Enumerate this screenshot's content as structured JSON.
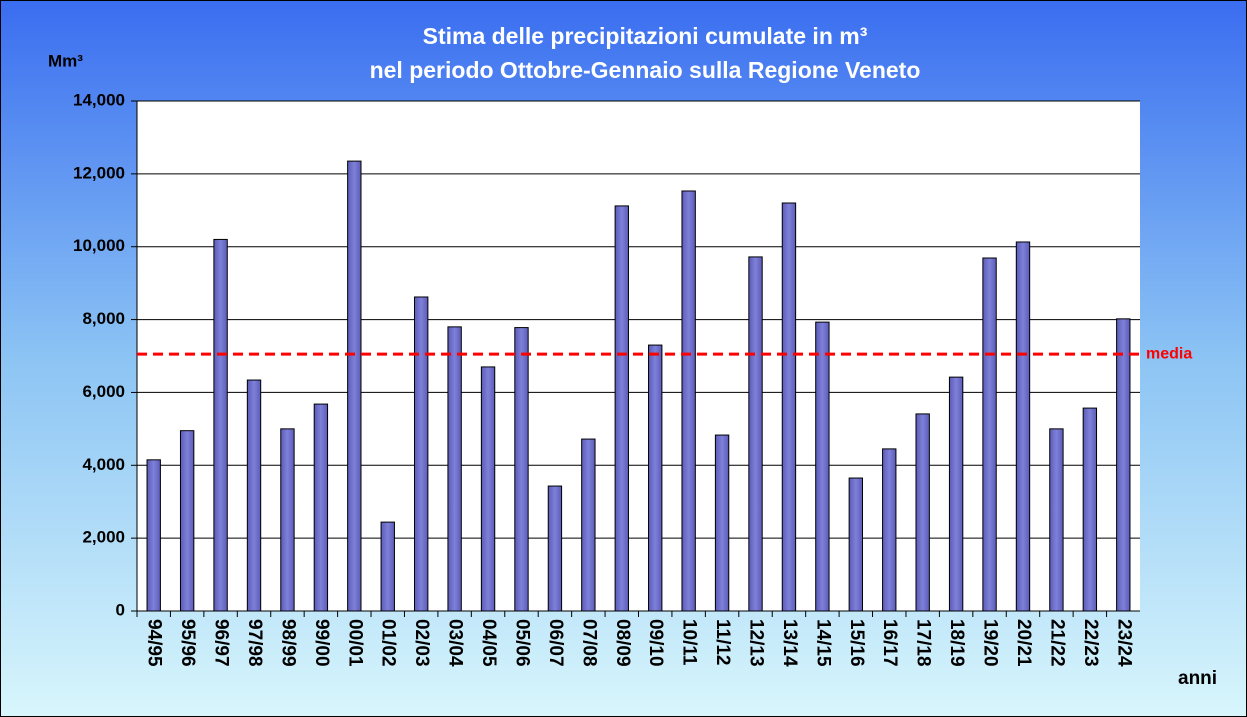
{
  "chart_data": {
    "type": "bar",
    "title": [
      "Stima delle precipitazioni cumulate in m³",
      "nel periodo Ottobre-Gennaio sulla  Regione Veneto"
    ],
    "y_label": "Mm³",
    "x_label": "anni",
    "categories": [
      "94/95",
      "95/96",
      "96/97",
      "97/98",
      "98/99",
      "99/00",
      "00/01",
      "01/02",
      "02/03",
      "03/04",
      "04/05",
      "05/06",
      "06/07",
      "07/08",
      "08/09",
      "09/10",
      "10/11",
      "11/12",
      "12/13",
      "13/14",
      "14/15",
      "15/16",
      "16/17",
      "17/18",
      "18/19",
      "19/20",
      "20/21",
      "21/22",
      "22/23",
      "23/24"
    ],
    "values": [
      4150,
      4950,
      10200,
      6340,
      5000,
      5680,
      12350,
      2440,
      8620,
      7800,
      6700,
      7780,
      3430,
      4720,
      11120,
      7300,
      11530,
      4830,
      9720,
      11200,
      7930,
      3650,
      4450,
      5410,
      6420,
      9690,
      10130,
      5000,
      5570,
      8020
    ],
    "color": "#7f80d8",
    "ylim": [
      0,
      14000
    ],
    "yticks": [
      0,
      {
        "value": 2000,
        "label": "2,000"
      },
      {
        "value": 4000,
        "label": "4,000"
      },
      {
        "value": 6000,
        "label": "6,000"
      },
      {
        "value": 8000,
        "label": "8,000"
      },
      {
        "value": 10000,
        "label": "10,000"
      },
      {
        "value": 12000,
        "label": "12,000"
      },
      {
        "value": 14000,
        "label": "14,000"
      }
    ],
    "grid": true,
    "reference_line": {
      "label": "media",
      "value": 7050,
      "color": "#ff0000"
    }
  }
}
